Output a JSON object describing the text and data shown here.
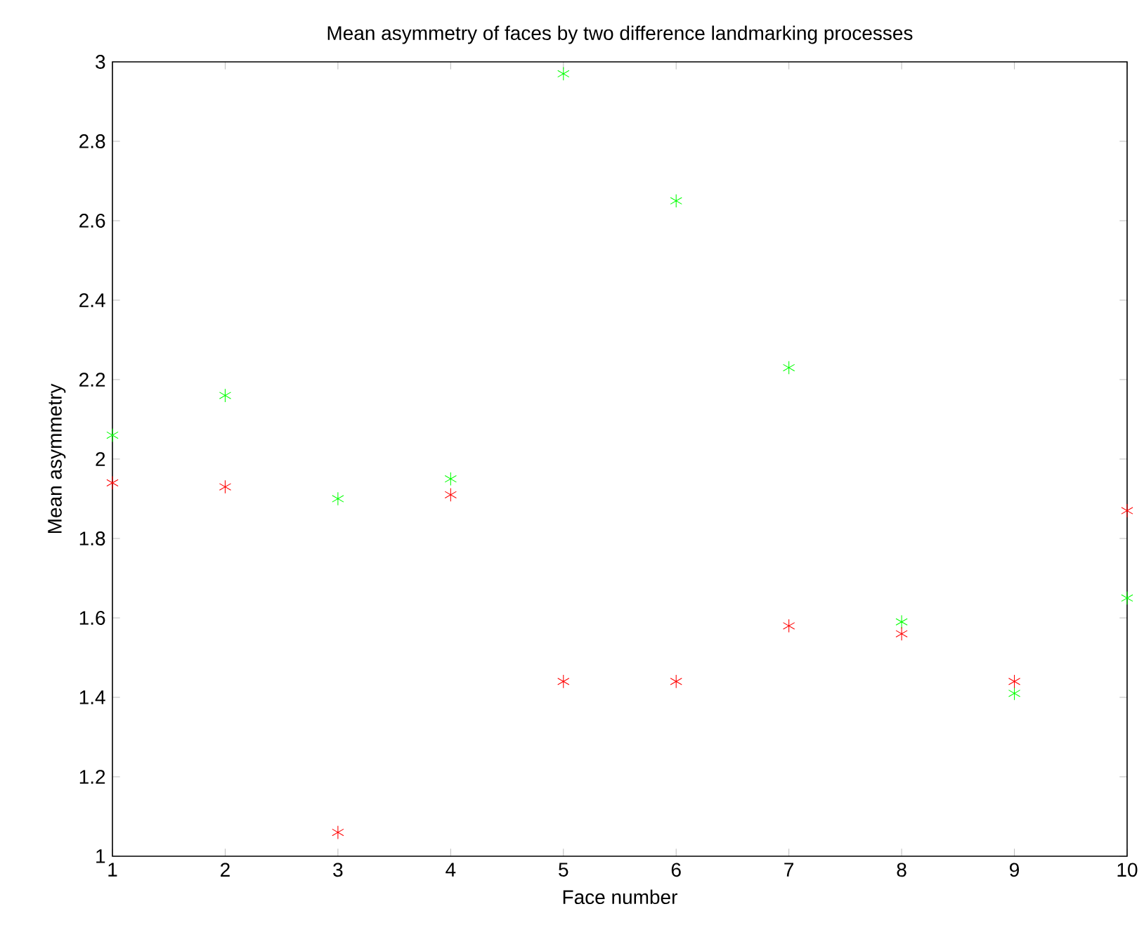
{
  "chart_data": {
    "type": "scatter",
    "title": "Mean asymmetry of faces by two difference landmarking processes",
    "xlabel": "Face number",
    "ylabel": "Mean asymmetry",
    "x": [
      1,
      2,
      3,
      4,
      5,
      6,
      7,
      8,
      9,
      10
    ],
    "series": [
      {
        "color": "#00ff00",
        "values": [
          2.06,
          2.16,
          1.9,
          1.95,
          2.97,
          2.65,
          2.23,
          1.59,
          1.41,
          1.65
        ]
      },
      {
        "color": "#ff0000",
        "values": [
          1.94,
          1.93,
          1.06,
          1.91,
          1.44,
          1.44,
          1.58,
          1.56,
          1.44,
          1.87
        ]
      }
    ],
    "xlim": [
      1,
      10
    ],
    "ylim": [
      1,
      3
    ],
    "xticks": [
      1,
      2,
      3,
      4,
      5,
      6,
      7,
      8,
      9,
      10
    ],
    "yticks": [
      1,
      1.2,
      1.4,
      1.6,
      1.8,
      2,
      2.2,
      2.4,
      2.6,
      2.8,
      3
    ],
    "marker": "cross",
    "grid": false
  }
}
